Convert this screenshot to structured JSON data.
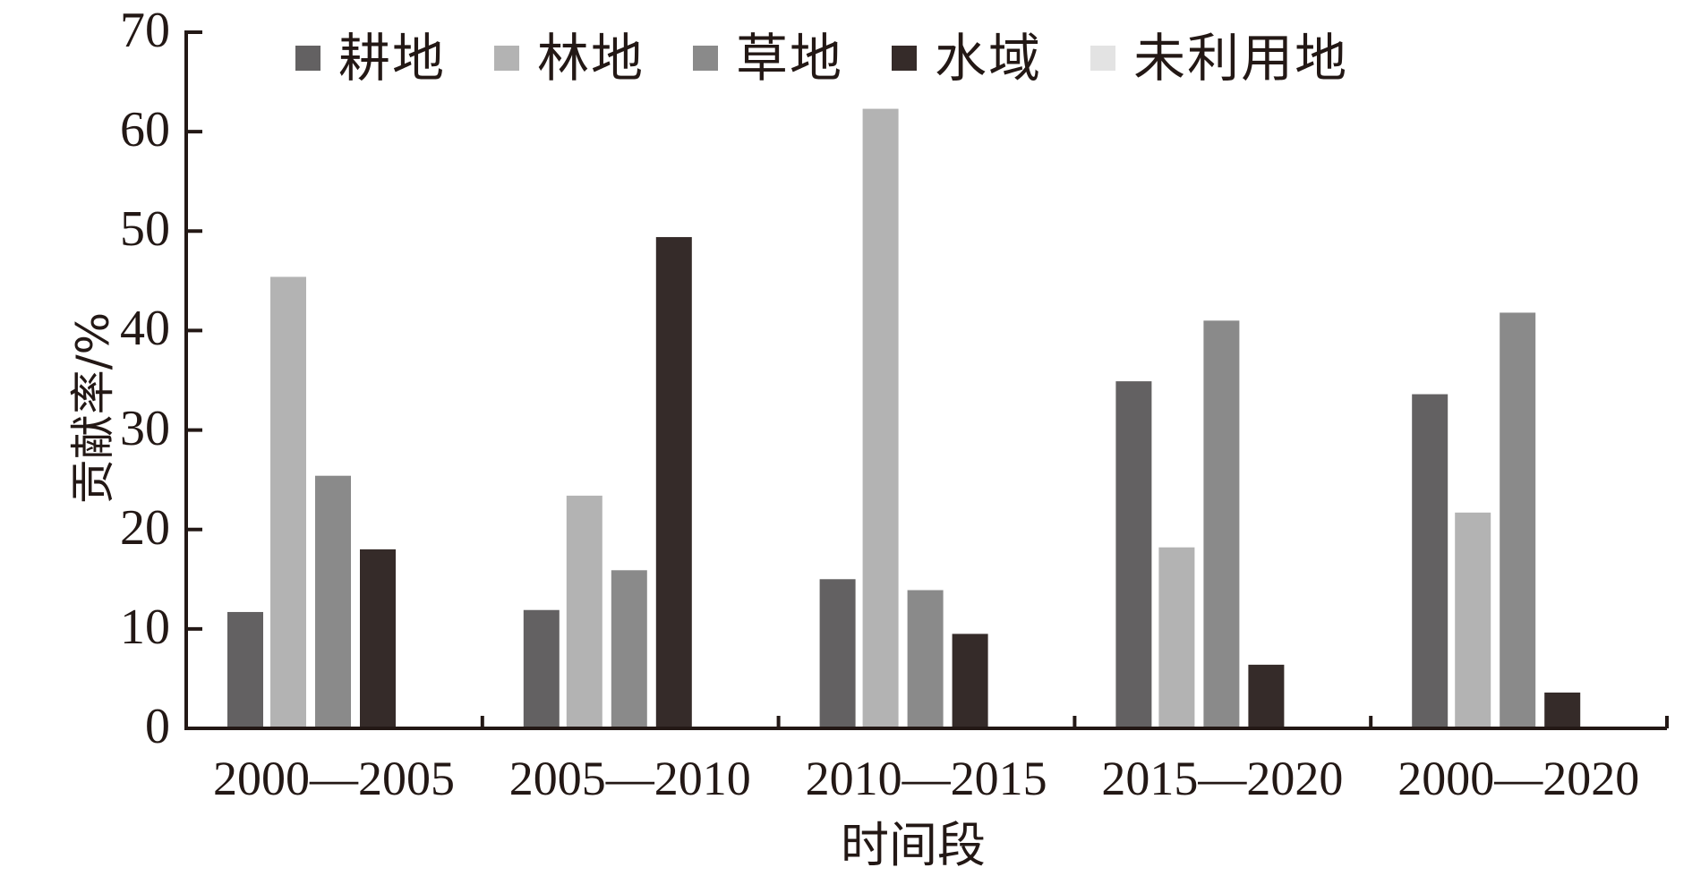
{
  "chart_data": {
    "type": "bar",
    "title": "",
    "xlabel": "时间段",
    "ylabel": "贡献率/%",
    "ylim": [
      0,
      70
    ],
    "yticks": [
      0,
      10,
      20,
      30,
      40,
      50,
      60,
      70
    ],
    "grid": false,
    "legend_position": "top",
    "categories": [
      "2000—2005",
      "2005—2010",
      "2010—2015",
      "2015—2020",
      "2000—2020"
    ],
    "series": [
      {
        "name": "耕地",
        "color": "#636162",
        "values": [
          11.7,
          11.9,
          15.0,
          34.9,
          33.6
        ]
      },
      {
        "name": "林地",
        "color": "#b3b3b3",
        "values": [
          45.4,
          23.4,
          62.3,
          18.2,
          21.7
        ]
      },
      {
        "name": "草地",
        "color": "#8a8a8a",
        "values": [
          25.4,
          15.9,
          13.9,
          41.0,
          41.8
        ]
      },
      {
        "name": "水域",
        "color": "#352b29",
        "values": [
          18.0,
          49.4,
          9.5,
          6.4,
          3.6
        ]
      },
      {
        "name": "未利用地",
        "color": "#e3e3e3",
        "values": [
          0,
          0,
          0,
          0,
          0
        ]
      }
    ]
  },
  "axis_color": "#231815"
}
